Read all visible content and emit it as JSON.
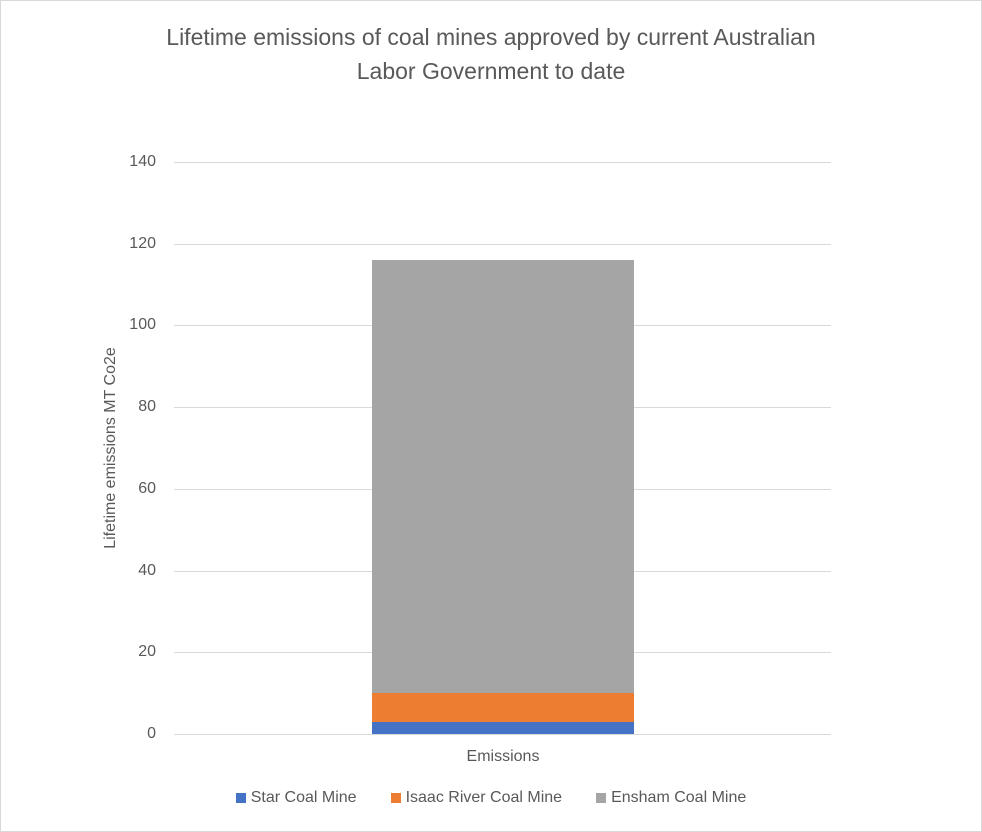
{
  "chart_data": {
    "type": "bar",
    "stacked": true,
    "title": "Lifetime emissions of coal mines approved by current Australian Labor Government to date",
    "title_lines": [
      "Lifetime emissions of coal mines approved by current Australian",
      "Labor Government to date"
    ],
    "xlabel": "",
    "ylabel": "Lifetime  emissions MT Co2e",
    "categories": [
      "Emissions"
    ],
    "series": [
      {
        "name": "Star Coal Mine",
        "values": [
          3
        ],
        "color": "#4472c4"
      },
      {
        "name": "Isaac River Coal Mine",
        "values": [
          7
        ],
        "color": "#ed7d31"
      },
      {
        "name": "Ensham Coal Mine",
        "values": [
          106
        ],
        "color": "#a5a5a5"
      }
    ],
    "ylim": [
      0,
      140
    ],
    "yticks": [
      "0",
      "20",
      "40",
      "60",
      "80",
      "100",
      "120",
      "140"
    ],
    "grid": true,
    "legend_position": "bottom"
  }
}
